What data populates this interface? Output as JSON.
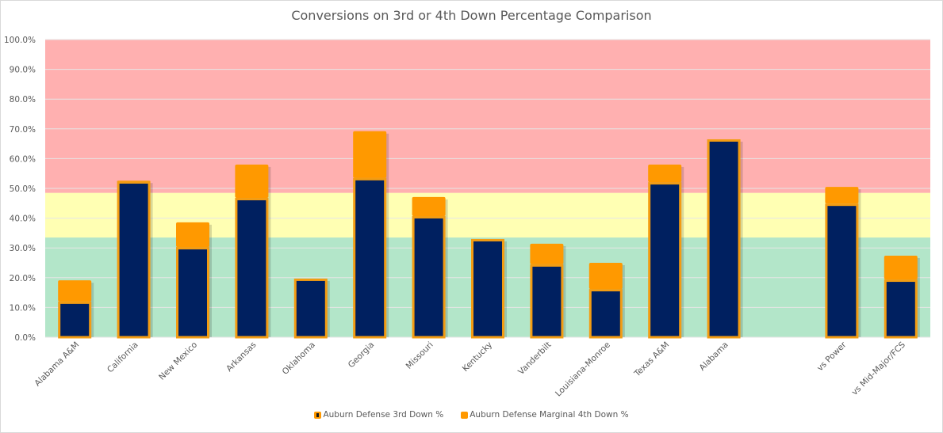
{
  "chart_data": {
    "type": "bar",
    "stacked": true,
    "title": "Conversions on 3rd or 4th Down Percentage Comparison",
    "xlabel": "",
    "ylabel": "",
    "ylim": [
      0,
      100
    ],
    "yticks": [
      "0.0%",
      "10.0%",
      "20.0%",
      "30.0%",
      "40.0%",
      "50.0%",
      "60.0%",
      "70.0%",
      "80.0%",
      "90.0%",
      "100.0%"
    ],
    "ytick_values": [
      0,
      10,
      20,
      30,
      40,
      50,
      60,
      70,
      80,
      90,
      100
    ],
    "grid": true,
    "categories": [
      "Alabama A&M",
      "California",
      "New Mexico",
      "Arkansas",
      "Oklahoma",
      "Georgia",
      "Missouri",
      "Kentucky",
      "Vanderbilt",
      "Louisiana-Monroe",
      "Texas A&M",
      "Alabama",
      "",
      "vs Power",
      "vs Mid-Major/FCS"
    ],
    "series": [
      {
        "name": "Auburn Defense 3rd Down %",
        "color": "#002060",
        "border": "#f39c12",
        "values": [
          12.0,
          52.4,
          30.3,
          46.8,
          19.7,
          53.5,
          40.7,
          33.0,
          24.5,
          16.2,
          52.1,
          66.5,
          null,
          44.9,
          19.4
        ]
      },
      {
        "name": "Auburn Defense Marginal 4th Down %",
        "color": "#ff9900",
        "values": [
          7.1,
          0.2,
          8.3,
          11.2,
          0.0,
          15.7,
          6.4,
          0.0,
          6.9,
          8.8,
          5.9,
          0.0,
          null,
          5.6,
          8.0
        ]
      }
    ],
    "background_bands": [
      {
        "from": 0,
        "to": 33.5,
        "color": "#b3e6c9"
      },
      {
        "from": 33.5,
        "to": 48.5,
        "color": "#ffffb3"
      },
      {
        "from": 48.5,
        "to": 100,
        "color": "#ffb0b0"
      }
    ],
    "legend_position": "bottom"
  }
}
